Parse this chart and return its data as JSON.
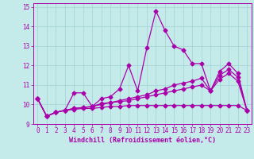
{
  "xlabel": "Windchill (Refroidissement éolien,°C)",
  "xlim": [
    -0.5,
    23.5
  ],
  "ylim": [
    9,
    15.2
  ],
  "yticks": [
    9,
    10,
    11,
    12,
    13,
    14,
    15
  ],
  "xticks": [
    0,
    1,
    2,
    3,
    4,
    5,
    6,
    7,
    8,
    9,
    10,
    11,
    12,
    13,
    14,
    15,
    16,
    17,
    18,
    19,
    20,
    21,
    22,
    23
  ],
  "background_color": "#c5eaea",
  "grid_color": "#a8d8d8",
  "line_color": "#aa00aa",
  "line1": [
    10.3,
    9.4,
    9.6,
    9.7,
    10.6,
    10.6,
    9.9,
    10.3,
    10.4,
    10.8,
    12.0,
    10.7,
    12.9,
    14.8,
    13.8,
    13.0,
    12.8,
    12.1,
    12.1,
    10.7,
    11.7,
    12.1,
    11.6,
    9.7
  ],
  "line2": [
    10.3,
    9.4,
    9.6,
    9.7,
    9.75,
    9.8,
    9.8,
    9.85,
    9.9,
    9.9,
    9.95,
    9.95,
    9.95,
    9.95,
    9.95,
    9.95,
    9.95,
    9.95,
    9.95,
    9.95,
    9.95,
    9.95,
    9.95,
    9.7
  ],
  "line3": [
    10.3,
    9.4,
    9.6,
    9.7,
    9.8,
    9.85,
    9.9,
    10.0,
    10.1,
    10.15,
    10.2,
    10.3,
    10.4,
    10.5,
    10.6,
    10.7,
    10.8,
    10.9,
    11.0,
    10.7,
    11.3,
    11.6,
    11.2,
    9.7
  ],
  "line4": [
    10.3,
    9.4,
    9.6,
    9.7,
    9.8,
    9.85,
    9.9,
    10.05,
    10.1,
    10.2,
    10.3,
    10.4,
    10.5,
    10.7,
    10.8,
    11.0,
    11.1,
    11.2,
    11.35,
    10.7,
    11.5,
    11.8,
    11.4,
    9.7
  ],
  "markersize": 2.5,
  "linewidth": 0.9
}
